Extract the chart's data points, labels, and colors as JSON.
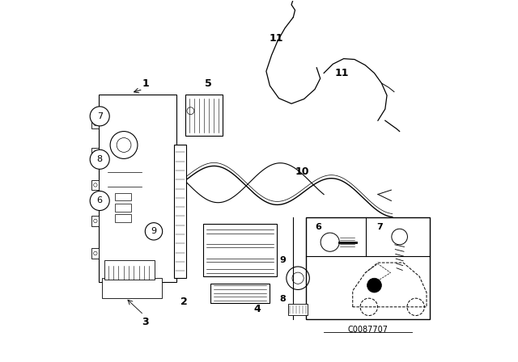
{
  "bg_color": "#ffffff",
  "fig_width": 6.4,
  "fig_height": 4.48,
  "dpi": 100,
  "diagram_code": "C0087707",
  "line_color": "#000000"
}
